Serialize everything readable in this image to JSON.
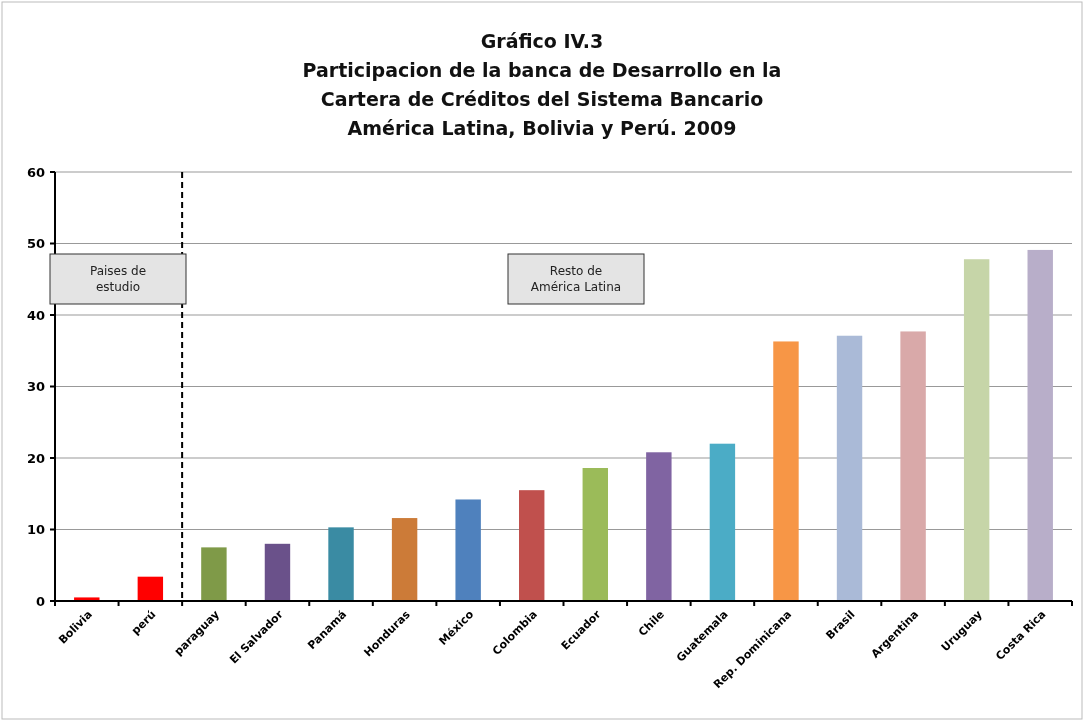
{
  "chart_data": {
    "type": "bar",
    "title": "Gráfico IV.3\nParticipacion de la banca de Desarrollo en la\nCartera de Créditos del Sistema Bancario\nAmérica Latina, Bolivia y Perú. 2009",
    "categories": [
      "Bolivia",
      "perú",
      "paraguay",
      "El Salvador",
      "Panamá",
      "Honduras",
      "México",
      "Colombia",
      "Ecuador",
      "Chile",
      "Guatemala",
      "Rep. Dominicana",
      "Brasil",
      "Argentina",
      "Uruguay",
      "Costa Rica"
    ],
    "values": [
      0.5,
      3.4,
      7.5,
      8.0,
      10.3,
      11.6,
      14.2,
      15.5,
      18.6,
      20.8,
      22.0,
      36.3,
      37.1,
      37.7,
      47.8,
      49.1
    ],
    "colors": [
      "#ff0000",
      "#ff0000",
      "#7f9a48",
      "#6a518a",
      "#3a8ba3",
      "#cc7b38",
      "#4f81bd",
      "#c0504d",
      "#9bbb59",
      "#8064a2",
      "#4bacc6",
      "#f79646",
      "#aabad7",
      "#d9a9a9",
      "#c6d5a8",
      "#b8aec9"
    ],
    "ylim": [
      0,
      60
    ],
    "yticks": [
      0,
      10,
      20,
      30,
      40,
      50,
      60
    ],
    "grid": "y",
    "annotations": [
      "Paises de\nestudio",
      "Resto de\nAmérica Latina"
    ]
  }
}
